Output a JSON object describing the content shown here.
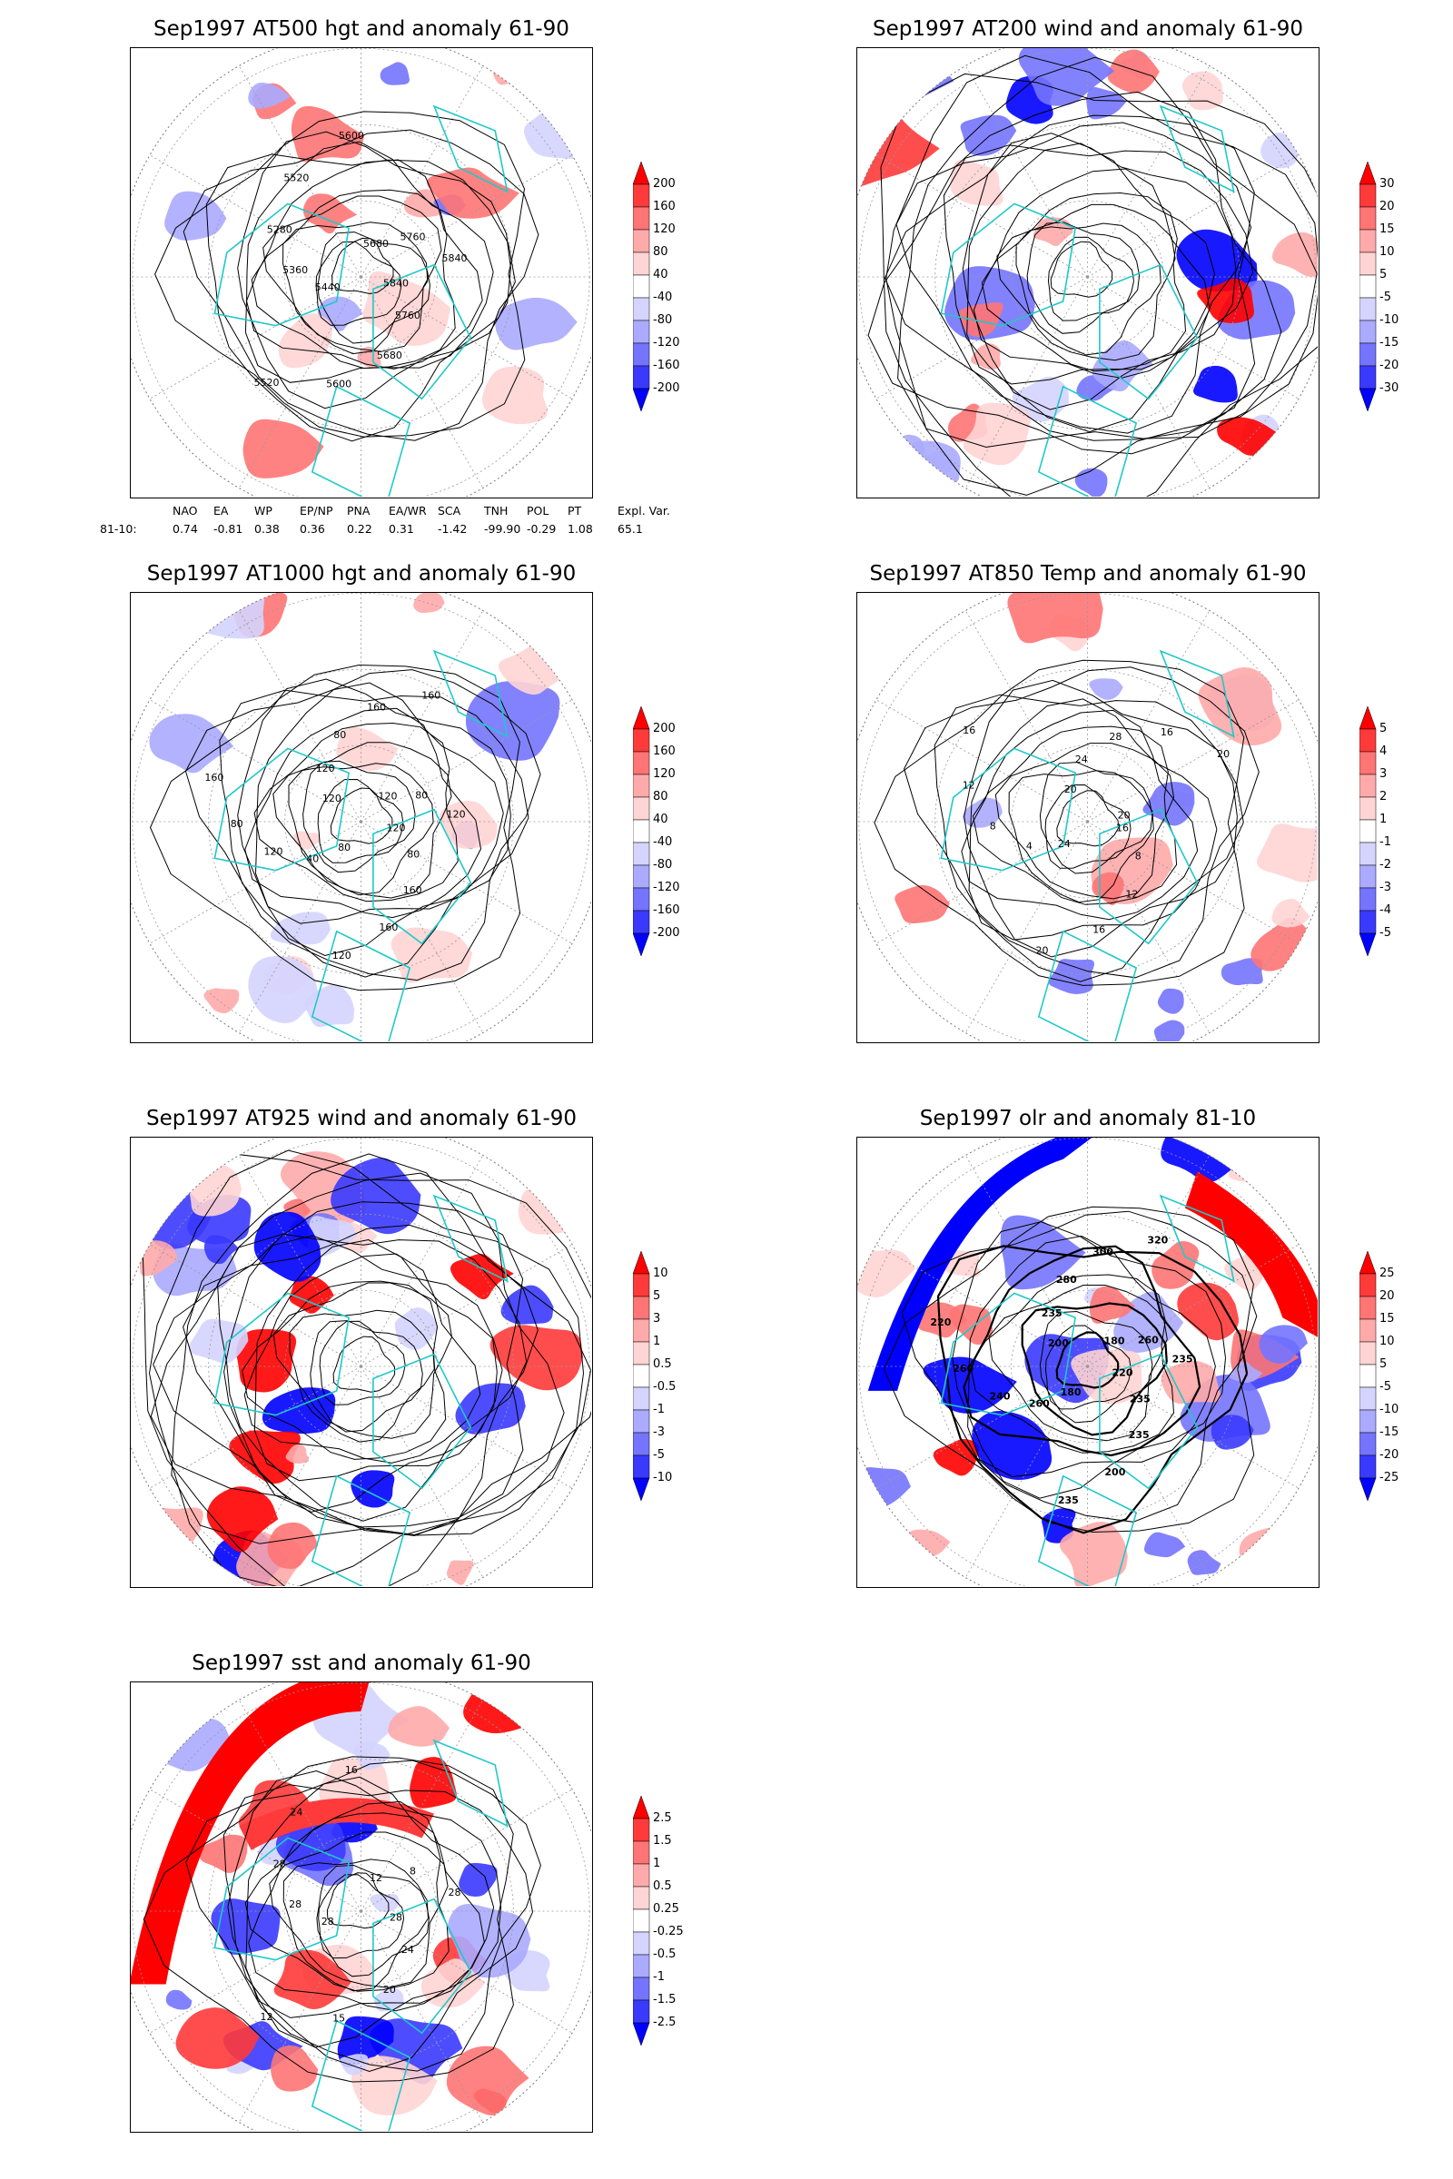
{
  "panels": [
    {
      "id": "at500",
      "title": "Sep1997 AT500 hgt and anomaly 61-90",
      "colorbar_levels": [
        "200",
        "160",
        "120",
        "80",
        "40",
        "-40",
        "-80",
        "-120",
        "-160",
        "-200"
      ],
      "contour_labels": [
        "5840",
        "5760",
        "5680",
        "5600",
        "5520",
        "5440",
        "5360",
        "5280",
        "5520",
        "5600",
        "5680",
        "5760",
        "5840"
      ],
      "style": "contour"
    },
    {
      "id": "at200",
      "title": "Sep1997 AT200 wind and anomaly 61-90",
      "colorbar_levels": [
        "30",
        "20",
        "15",
        "10",
        "5",
        "-5",
        "-10",
        "-15",
        "-20",
        "-30"
      ],
      "contour_labels": [],
      "style": "stream"
    },
    {
      "id": "at1000",
      "title": "Sep1997 AT1000 hgt and anomaly 61-90",
      "colorbar_levels": [
        "200",
        "160",
        "120",
        "80",
        "40",
        "-40",
        "-80",
        "-120",
        "-160",
        "-200"
      ],
      "contour_labels": [
        "120",
        "80",
        "160",
        "160",
        "120",
        "80",
        "40",
        "120",
        "80",
        "160",
        "120",
        "120",
        "80",
        "160",
        "160",
        "120",
        "80",
        "120"
      ],
      "style": "contour"
    },
    {
      "id": "at850",
      "title": "Sep1997 AT850 Temp and anomaly 61-90",
      "colorbar_levels": [
        "5",
        "4",
        "3",
        "2",
        "1",
        "-1",
        "-2",
        "-3",
        "-4",
        "-5"
      ],
      "contour_labels": [
        "16",
        "8",
        "12",
        "16",
        "20",
        "24",
        "4",
        "8",
        "12",
        "16",
        "20",
        "24",
        "28",
        "16",
        "20",
        "20"
      ],
      "style": "contour"
    },
    {
      "id": "at925",
      "title": "Sep1997 AT925 wind and anomaly 61-90",
      "colorbar_levels": [
        "10",
        "5",
        "3",
        "1",
        "0.5",
        "-0.5",
        "-1",
        "-3",
        "-5",
        "-10"
      ],
      "contour_labels": [],
      "style": "stream"
    },
    {
      "id": "olr",
      "title": "Sep1997 olr and anomaly 81-10",
      "colorbar_levels": [
        "25",
        "20",
        "15",
        "10",
        "5",
        "-5",
        "-10",
        "-15",
        "-20",
        "-25"
      ],
      "contour_labels": [
        "220",
        "235",
        "235",
        "200",
        "235",
        "180",
        "260",
        "240",
        "260",
        "220",
        "200",
        "235",
        "280",
        "300",
        "320",
        "180",
        "260",
        "235"
      ],
      "style": "olr"
    },
    {
      "id": "sst",
      "title": "Sep1997 sst and anomaly 61-90",
      "colorbar_levels": [
        "2.5",
        "1.5",
        "1",
        "0.5",
        "0.25",
        "-0.25",
        "-0.5",
        "-1",
        "-1.5",
        "-2.5"
      ],
      "contour_labels": [
        "28",
        "24",
        "20",
        "15",
        "12",
        "28",
        "28",
        "28",
        "24",
        "16",
        "12",
        "8",
        "28"
      ],
      "style": "sst"
    }
  ],
  "colors": {
    "pos": [
      "#ff0000",
      "#ff3a3a",
      "#ff7474",
      "#ffaaaa",
      "#ffd4d4"
    ],
    "neutral": "#ffffff",
    "neg": [
      "#d4d4ff",
      "#aaaaff",
      "#7474ff",
      "#3a3aff",
      "#0000ff"
    ],
    "coast": "#20c8c8",
    "grid": "#999999"
  },
  "index_table": {
    "headers": [
      "NAO",
      "EA",
      "WP",
      "EP/NP",
      "PNA",
      "EA/WR",
      "SCA",
      "TNH",
      "POL",
      "PT",
      "Expl. Var."
    ],
    "row_label": "81-10:",
    "values": [
      "0.74",
      "-0.81",
      "0.38",
      "0.36",
      "0.22",
      "0.31",
      "-1.42",
      "-99.90",
      "-0.29",
      "1.08",
      "65.1"
    ]
  }
}
